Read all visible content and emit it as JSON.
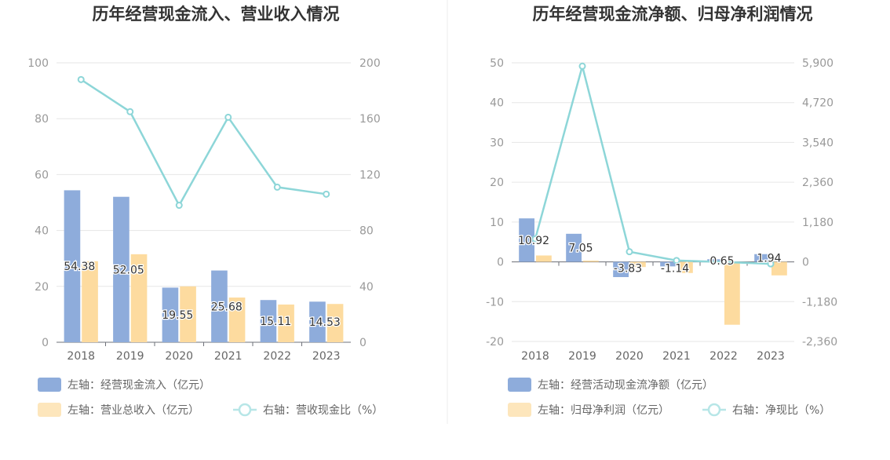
{
  "chart_data": [
    {
      "type": "bar",
      "title": "历年经营现金流入、营业收入情况",
      "categories": [
        "2018",
        "2019",
        "2020",
        "2021",
        "2022",
        "2023"
      ],
      "y_left": {
        "ticks": [
          "100",
          "80",
          "60",
          "40",
          "20",
          "0"
        ],
        "min": 0,
        "max": 100
      },
      "y_right": {
        "ticks": [
          "200",
          "160",
          "120",
          "80",
          "40",
          "0"
        ],
        "min": 0,
        "max": 200
      },
      "series": [
        {
          "name": "左轴：经营现金流入（亿元）",
          "kind": "bar",
          "axis": "left",
          "color": "#8eacdb",
          "values": [
            54.38,
            52.05,
            19.55,
            25.68,
            15.11,
            14.53
          ],
          "labels": [
            "54.38",
            "52.05",
            "19.55",
            "25.68",
            "15.11",
            "14.53"
          ]
        },
        {
          "name": "左轴：营业总收入（亿元）",
          "kind": "bar",
          "axis": "left",
          "color": "#fddb9f",
          "values": [
            29.0,
            31.5,
            20.0,
            16.0,
            13.5,
            13.7
          ]
        },
        {
          "name": "右轴：营收现金比（%）",
          "kind": "line",
          "axis": "right",
          "color": "#8dd6d8",
          "values": [
            188,
            165,
            98,
            161,
            111,
            106
          ]
        }
      ]
    },
    {
      "type": "bar",
      "title": "历年经营现金流净额、归母净利润情况",
      "categories": [
        "2018",
        "2019",
        "2020",
        "2021",
        "2022",
        "2023"
      ],
      "y_left": {
        "ticks": [
          "50",
          "40",
          "30",
          "20",
          "10",
          "0",
          "-10",
          "-20"
        ],
        "min": -20,
        "max": 50
      },
      "y_right": {
        "ticks": [
          "5,900",
          "4,720",
          "3,540",
          "2,360",
          "1,180",
          "0",
          "-1,180",
          "-2,360"
        ],
        "min": -2360,
        "max": 5900
      },
      "series": [
        {
          "name": "左轴：经营活动现金流净额（亿元）",
          "kind": "bar",
          "axis": "left",
          "color": "#8eacdb",
          "values": [
            10.92,
            7.05,
            -3.83,
            -1.14,
            0.65,
            1.94
          ],
          "labels": [
            "10.92",
            "7.05",
            "-3.83",
            "-1.14",
            "0.65",
            "1.94"
          ]
        },
        {
          "name": "左轴：归母净利润（亿元）",
          "kind": "bar",
          "axis": "left",
          "color": "#fddb9f",
          "values": [
            1.6,
            0.3,
            -1.3,
            -2.8,
            -15.8,
            -3.4
          ]
        },
        {
          "name": "右轴：净现比（%）",
          "kind": "line",
          "axis": "right",
          "color": "#8dd6d8",
          "values": [
            680,
            5800,
            300,
            40,
            -5,
            -60
          ]
        }
      ]
    }
  ]
}
